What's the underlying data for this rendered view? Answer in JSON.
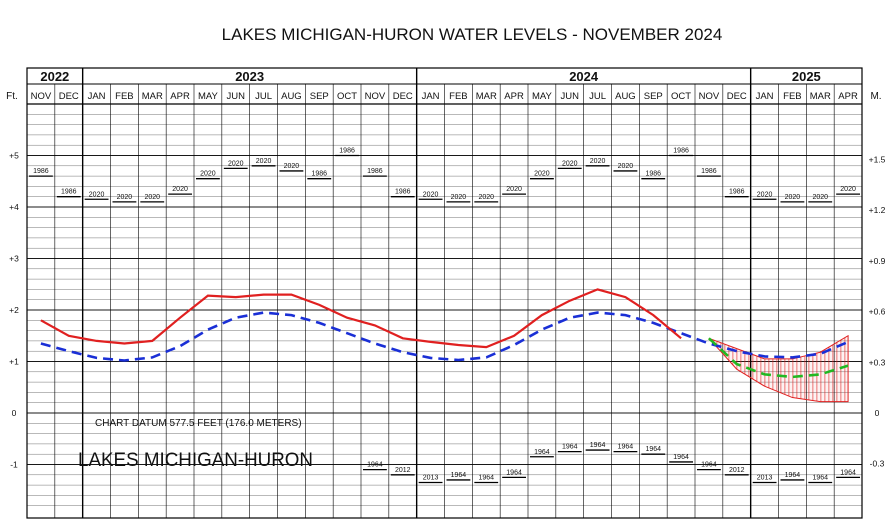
{
  "chart_data": {
    "type": "line",
    "title": "LAKES MICHIGAN-HURON WATER LEVELS - NOVEMBER 2024",
    "left_axis_unit": "Ft.",
    "right_axis_unit": "M.",
    "years": [
      {
        "label": "2022",
        "months": 2
      },
      {
        "label": "2023",
        "months": 12
      },
      {
        "label": "2024",
        "months": 12
      },
      {
        "label": "2025",
        "months": 4
      }
    ],
    "months": [
      "NOV",
      "DEC",
      "JAN",
      "FEB",
      "MAR",
      "APR",
      "MAY",
      "JUN",
      "JUL",
      "AUG",
      "SEP",
      "OCT",
      "NOV",
      "DEC",
      "JAN",
      "FEB",
      "MAR",
      "APR",
      "MAY",
      "JUN",
      "JUL",
      "AUG",
      "SEP",
      "OCT",
      "NOV",
      "DEC",
      "JAN",
      "FEB",
      "MAR",
      "APR"
    ],
    "ft_ticks": [
      {
        "value": 5,
        "label": "+5"
      },
      {
        "value": 4,
        "label": "+4"
      },
      {
        "value": 3,
        "label": "+3"
      },
      {
        "value": 2,
        "label": "+2"
      },
      {
        "value": 1,
        "label": "+1"
      },
      {
        "value": 0,
        "label": "0"
      },
      {
        "value": -1,
        "label": "-1"
      }
    ],
    "m_ticks": [
      {
        "value": 1.5,
        "label": "+1.5"
      },
      {
        "value": 1.2,
        "label": "+1.2"
      },
      {
        "value": 0.9,
        "label": "+0.9"
      },
      {
        "value": 0.6,
        "label": "+0.6"
      },
      {
        "value": 0.3,
        "label": "+0.3"
      },
      {
        "value": 0,
        "label": "0"
      },
      {
        "value": -0.3,
        "label": "-0.3"
      }
    ],
    "ylim_ft": [
      -2.0,
      6.4
    ],
    "recorded_levels": [
      1.8,
      1.5,
      1.4,
      1.35,
      1.4,
      1.85,
      2.28,
      2.25,
      2.3,
      2.3,
      2.1,
      1.85,
      1.7,
      1.45,
      1.38,
      1.32,
      1.28,
      1.5,
      1.9,
      2.18,
      2.4,
      2.25,
      1.9,
      1.45
    ],
    "longterm_average": [
      1.35,
      1.2,
      1.07,
      1.02,
      1.08,
      1.3,
      1.62,
      1.85,
      1.95,
      1.9,
      1.75,
      1.55,
      1.35,
      1.18,
      1.07,
      1.03,
      1.08,
      1.32,
      1.62,
      1.85,
      1.95,
      1.9,
      1.75,
      1.55,
      1.35,
      1.2,
      1.1,
      1.08,
      1.15,
      1.38
    ],
    "forecast_most_probable": [
      1.45,
      0.95,
      0.75,
      0.7,
      0.75,
      0.92
    ],
    "forecast_high": [
      1.45,
      1.25,
      1.05,
      1.05,
      1.18,
      1.5
    ],
    "forecast_low": [
      1.45,
      0.85,
      0.52,
      0.3,
      0.22,
      0.22
    ],
    "forecast_start_index": 25,
    "max_records": [
      {
        "year": "1986",
        "value": 4.6
      },
      {
        "year": "1986",
        "value": 4.2
      },
      {
        "year": "2020",
        "value": 4.15
      },
      {
        "year": "2020",
        "value": 4.1
      },
      {
        "year": "2020",
        "value": 4.1
      },
      {
        "year": "2020",
        "value": 4.25
      },
      {
        "year": "2020",
        "value": 4.55
      },
      {
        "year": "2020",
        "value": 4.75
      },
      {
        "year": "2020",
        "value": 4.8
      },
      {
        "year": "2020",
        "value": 4.7
      },
      {
        "year": "1986",
        "value": 4.55
      },
      {
        "year": "1986",
        "value": 5.0
      },
      {
        "year": "1986",
        "value": 4.6
      },
      {
        "year": "1986",
        "value": 4.2
      },
      {
        "year": "2020",
        "value": 4.15
      },
      {
        "year": "2020",
        "value": 4.1
      },
      {
        "year": "2020",
        "value": 4.1
      },
      {
        "year": "2020",
        "value": 4.25
      },
      {
        "year": "2020",
        "value": 4.55
      },
      {
        "year": "2020",
        "value": 4.75
      },
      {
        "year": "2020",
        "value": 4.8
      },
      {
        "year": "2020",
        "value": 4.7
      },
      {
        "year": "1986",
        "value": 4.55
      },
      {
        "year": "1986",
        "value": 5.0
      },
      {
        "year": "1986",
        "value": 4.6
      },
      {
        "year": "1986",
        "value": 4.2
      },
      {
        "year": "2020",
        "value": 4.15
      },
      {
        "year": "2020",
        "value": 4.1
      },
      {
        "year": "2020",
        "value": 4.1
      },
      {
        "year": "2020",
        "value": 4.25
      }
    ],
    "min_records": [
      null,
      null,
      null,
      null,
      null,
      null,
      null,
      null,
      null,
      null,
      null,
      null,
      {
        "year": "1964",
        "value": -1.1
      },
      {
        "year": "2012",
        "value": -1.2
      },
      {
        "year": "2013",
        "value": -1.35
      },
      {
        "year": "1964",
        "value": -1.3
      },
      {
        "year": "1964",
        "value": -1.35
      },
      {
        "year": "1964",
        "value": -1.25
      },
      {
        "year": "1964",
        "value": -0.85
      },
      {
        "year": "1964",
        "value": -0.75
      },
      {
        "year": "1964",
        "value": -0.72
      },
      {
        "year": "1964",
        "value": -0.75
      },
      {
        "year": "1964",
        "value": -0.8
      },
      {
        "year": "1964",
        "value": -0.95
      },
      {
        "year": "1964",
        "value": -1.1
      },
      {
        "year": "2012",
        "value": -1.2
      },
      {
        "year": "2013",
        "value": -1.35
      },
      {
        "year": "1964",
        "value": -1.3
      },
      {
        "year": "1964",
        "value": -1.35
      },
      {
        "year": "1964",
        "value": -1.25
      }
    ],
    "annotations": {
      "datum": "CHART DATUM  577.5 FEET (176.0 METERS)",
      "lake_name": "LAKES MICHIGAN-HURON"
    },
    "colors": {
      "recorded": "#e02020",
      "average": "#1a2fd6",
      "forecast": "#22b822",
      "forecast_band": "#e02020",
      "grid": "#000000"
    },
    "grid": true
  }
}
